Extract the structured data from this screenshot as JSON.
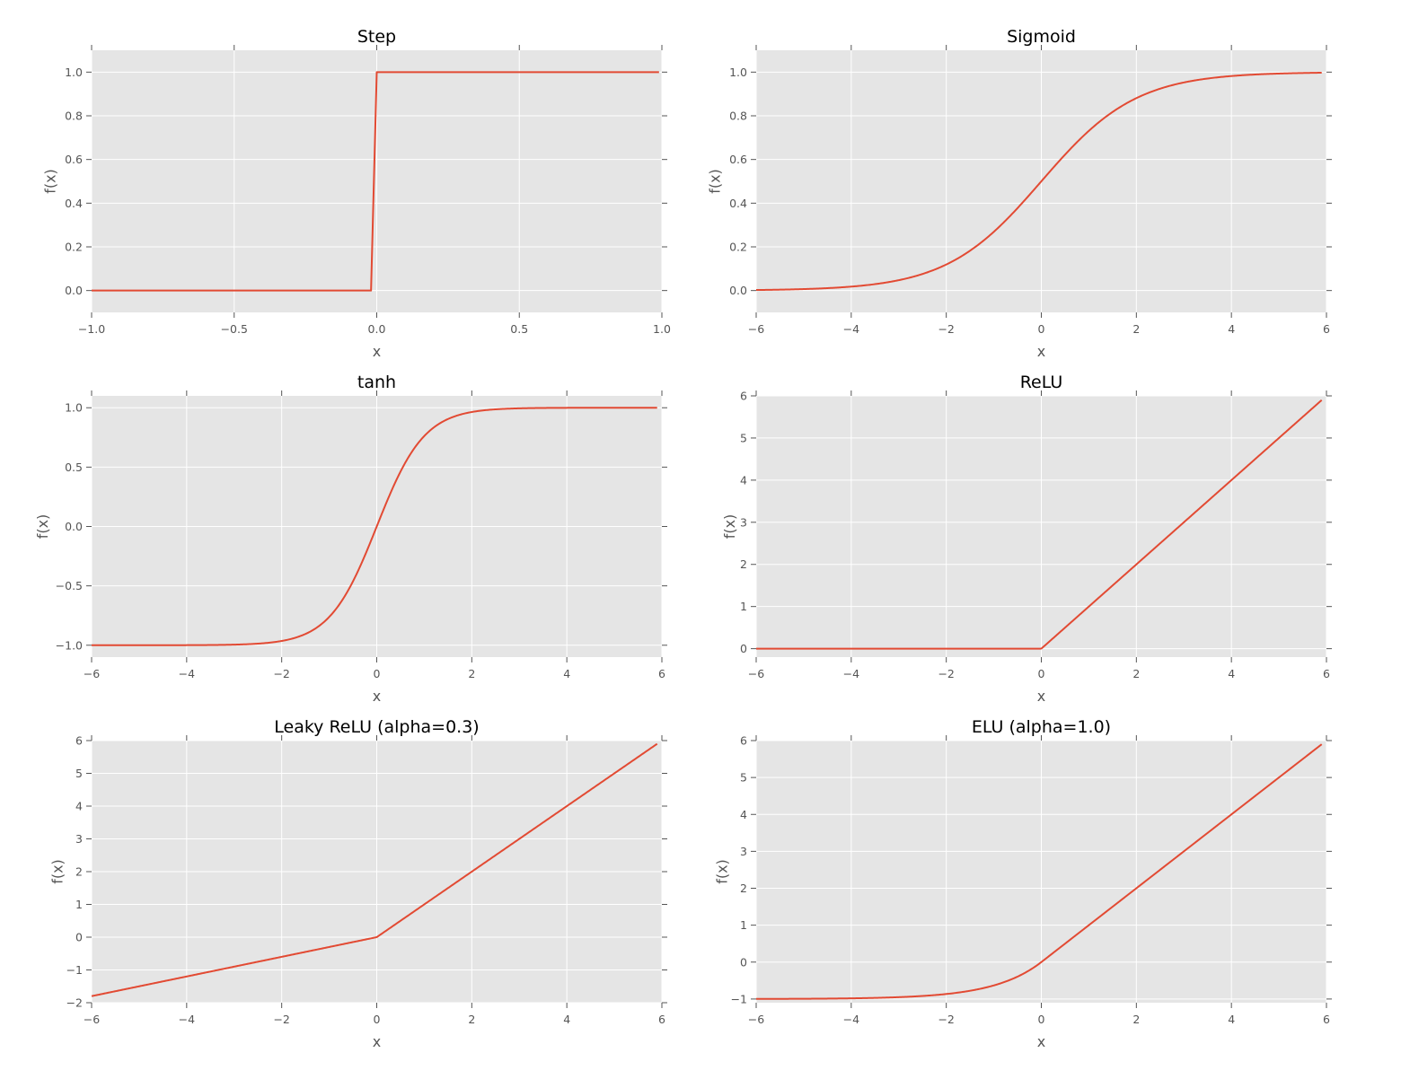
{
  "chart_data": [
    {
      "type": "line",
      "title": "Step",
      "xlabel": "x",
      "ylabel": "f(x)",
      "xlim": [
        -1.0,
        1.0
      ],
      "ylim": [
        -0.1,
        1.1
      ],
      "xticks": [
        -1.0,
        -0.5,
        0.0,
        0.5,
        1.0
      ],
      "xtick_labels": [
        "−1.0",
        "−0.5",
        "0.0",
        "0.5",
        "1.0"
      ],
      "yticks": [
        0.0,
        0.2,
        0.4,
        0.6,
        0.8,
        1.0
      ],
      "ytick_labels": [
        "0.0",
        "0.2",
        "0.4",
        "0.6",
        "0.8",
        "1.0"
      ],
      "grid": true,
      "series": [
        {
          "function": "step",
          "x_range": [
            -1.0,
            0.99
          ],
          "color": "#e24a33"
        }
      ]
    },
    {
      "type": "line",
      "title": "Sigmoid",
      "xlabel": "x",
      "ylabel": "f(x)",
      "xlim": [
        -6,
        6
      ],
      "ylim": [
        -0.1,
        1.1
      ],
      "xticks": [
        -6,
        -4,
        -2,
        0,
        2,
        4,
        6
      ],
      "xtick_labels": [
        "−6",
        "−4",
        "−2",
        "0",
        "2",
        "4",
        "6"
      ],
      "yticks": [
        0.0,
        0.2,
        0.4,
        0.6,
        0.8,
        1.0
      ],
      "ytick_labels": [
        "0.0",
        "0.2",
        "0.4",
        "0.6",
        "0.8",
        "1.0"
      ],
      "grid": true,
      "series": [
        {
          "function": "sigmoid",
          "x_range": [
            -6,
            5.9
          ],
          "color": "#e24a33"
        }
      ]
    },
    {
      "type": "line",
      "title": "tanh",
      "xlabel": "x",
      "ylabel": "f(x)",
      "xlim": [
        -6,
        6
      ],
      "ylim": [
        -1.1,
        1.1
      ],
      "xticks": [
        -6,
        -4,
        -2,
        0,
        2,
        4,
        6
      ],
      "xtick_labels": [
        "−6",
        "−4",
        "−2",
        "0",
        "2",
        "4",
        "6"
      ],
      "yticks": [
        -1.0,
        -0.5,
        0.0,
        0.5,
        1.0
      ],
      "ytick_labels": [
        "−1.0",
        "−0.5",
        "0.0",
        "0.5",
        "1.0"
      ],
      "grid": true,
      "series": [
        {
          "function": "tanh",
          "x_range": [
            -6,
            5.9
          ],
          "color": "#e24a33"
        }
      ]
    },
    {
      "type": "line",
      "title": "ReLU",
      "xlabel": "x",
      "ylabel": "f(x)",
      "xlim": [
        -6,
        6
      ],
      "ylim": [
        -0.2,
        6
      ],
      "xticks": [
        -6,
        -4,
        -2,
        0,
        2,
        4,
        6
      ],
      "xtick_labels": [
        "−6",
        "−4",
        "−2",
        "0",
        "2",
        "4",
        "6"
      ],
      "yticks": [
        0,
        1,
        2,
        3,
        4,
        5,
        6
      ],
      "ytick_labels": [
        "0",
        "1",
        "2",
        "3",
        "4",
        "5",
        "6"
      ],
      "grid": true,
      "series": [
        {
          "function": "relu",
          "x_range": [
            -6,
            5.9
          ],
          "color": "#e24a33"
        }
      ]
    },
    {
      "type": "line",
      "title": "Leaky ReLU (alpha=0.3)",
      "xlabel": "x",
      "ylabel": "f(x)",
      "xlim": [
        -6,
        6
      ],
      "ylim": [
        -2,
        6
      ],
      "xticks": [
        -6,
        -4,
        -2,
        0,
        2,
        4,
        6
      ],
      "xtick_labels": [
        "−6",
        "−4",
        "−2",
        "0",
        "2",
        "4",
        "6"
      ],
      "yticks": [
        -2,
        -1,
        0,
        1,
        2,
        3,
        4,
        5,
        6
      ],
      "ytick_labels": [
        "−2",
        "−1",
        "0",
        "1",
        "2",
        "3",
        "4",
        "5",
        "6"
      ],
      "grid": true,
      "series": [
        {
          "function": "leaky_relu",
          "alpha": 0.3,
          "x_range": [
            -6,
            5.9
          ],
          "color": "#e24a33"
        }
      ]
    },
    {
      "type": "line",
      "title": "ELU (alpha=1.0)",
      "xlabel": "x",
      "ylabel": "f(x)",
      "xlim": [
        -6,
        6
      ],
      "ylim": [
        -1.1,
        6
      ],
      "xticks": [
        -6,
        -4,
        -2,
        0,
        2,
        4,
        6
      ],
      "xtick_labels": [
        "−6",
        "−4",
        "−2",
        "0",
        "2",
        "4",
        "6"
      ],
      "yticks": [
        -1,
        0,
        1,
        2,
        3,
        4,
        5,
        6
      ],
      "ytick_labels": [
        "−1",
        "0",
        "1",
        "2",
        "3",
        "4",
        "5",
        "6"
      ],
      "grid": true,
      "series": [
        {
          "function": "elu",
          "alpha": 1.0,
          "x_range": [
            -6,
            5.9
          ],
          "color": "#e24a33"
        }
      ]
    }
  ]
}
